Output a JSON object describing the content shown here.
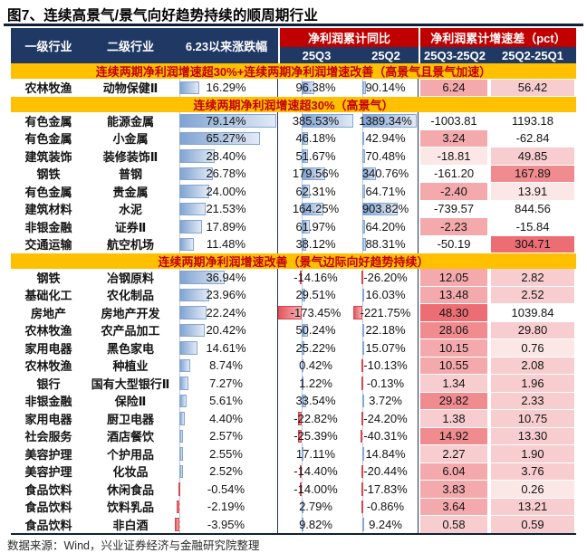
{
  "title": "图7、连续高景气/景气向好趋势持续的顺周期行业",
  "footer": "数据来源：Wind，兴业证券经济与金融研究院整理",
  "colors": {
    "vars": {
      "navy": "#1F3864",
      "red": "#C00000",
      "yellow": "#FFC000",
      "banner-text": "#C00000",
      "divider": "#22365E",
      "bar-blue-1": "#7FA3D1",
      "bar-blue-2": "#E3EAF6",
      "bar-blue-border": "#84A6D2",
      "bar-red-1": "#E4565C",
      "bar-red-2": "#F3B2B4",
      "bar-red-border": "#D4474E",
      "heat1": "#FCE7E7",
      "heat2": "#F8CDCF",
      "heat3": "#F4A9AC",
      "heat4": "#F08C90",
      "heat5": "#EC6E74"
    }
  },
  "chart_data": {
    "type": "table",
    "title": "连续高景气/景气向好趋势持续的顺周期行业",
    "header": {
      "industry_l1": "一级行业",
      "industry_l2": "二级行业",
      "price_change": "6.23以来涨跌幅",
      "profit_group": "净利润累计同比",
      "diff_group": "净利润累计增速差（pct）",
      "q3": "25Q3",
      "q2": "25Q2",
      "d1": "25Q3-25Q2",
      "d2": "25Q2-25Q1"
    },
    "sections": [
      {
        "label": "连续两期净利润增速超30%+连续两期净利润增速改善（高景气且景气加速）",
        "rows": [
          {
            "l1": "农林牧渔",
            "l2": "动物保健Ⅱ",
            "chg": "16.29%",
            "q3": "96.38%",
            "q2": "90.14%",
            "d1": "6.24",
            "d2": "56.42",
            "h1": 3,
            "h2": 2
          }
        ]
      },
      {
        "label": "连续两期净利润增速超30%（高景气）",
        "rows": [
          {
            "l1": "有色金属",
            "l2": "能源金属",
            "chg": "79.14%",
            "q3": "385.53%",
            "q2": "1389.34%",
            "d1": "-1003.81",
            "d2": "1193.18",
            "h1": 0,
            "h2": 0
          },
          {
            "l1": "有色金属",
            "l2": "小金属",
            "chg": "65.27%",
            "q3": "46.18%",
            "q2": "42.94%",
            "d1": "3.24",
            "d2": "-62.84",
            "h1": 3,
            "h2": 0
          },
          {
            "l1": "建筑装饰",
            "l2": "装修装饰Ⅱ",
            "chg": "28.40%",
            "q3": "51.67%",
            "q2": "70.48%",
            "d1": "-18.81",
            "d2": "49.85",
            "h1": 1,
            "h2": 2
          },
          {
            "l1": "钢铁",
            "l2": "普钢",
            "chg": "26.78%",
            "q3": "179.56%",
            "q2": "340.76%",
            "d1": "-161.20",
            "d2": "167.89",
            "h1": 0,
            "h2": 4
          },
          {
            "l1": "有色金属",
            "l2": "贵金属",
            "chg": "24.00%",
            "q3": "62.31%",
            "q2": "64.71%",
            "d1": "-2.40",
            "d2": "13.91",
            "h1": 3,
            "h2": 1
          },
          {
            "l1": "建筑材料",
            "l2": "水泥",
            "chg": "21.53%",
            "q3": "164.25%",
            "q2": "903.82%",
            "d1": "-739.57",
            "d2": "844.56",
            "h1": 0,
            "h2": 0
          },
          {
            "l1": "非银金融",
            "l2": "证券Ⅱ",
            "chg": "17.89%",
            "q3": "61.97%",
            "q2": "64.20%",
            "d1": "-2.23",
            "d2": "-15.84",
            "h1": 3,
            "h2": 0
          },
          {
            "l1": "交通运输",
            "l2": "航空机场",
            "chg": "11.48%",
            "q3": "38.12%",
            "q2": "88.31%",
            "d1": "-50.19",
            "d2": "304.71",
            "h1": 0,
            "h2": 5
          }
        ]
      },
      {
        "label": "连续两期净利润增速改善（景气边际向好趋势持续）",
        "rows": [
          {
            "l1": "钢铁",
            "l2": "冶钢原料",
            "chg": "36.94%",
            "q3": "-14.16%",
            "q2": "-26.20%",
            "d1": "12.05",
            "d2": "2.82",
            "h1": 3,
            "h2": 2
          },
          {
            "l1": "基础化工",
            "l2": "农化制品",
            "chg": "23.96%",
            "q3": "29.51%",
            "q2": "16.03%",
            "d1": "13.48",
            "d2": "2.52",
            "h1": 3,
            "h2": 2
          },
          {
            "l1": "房地产",
            "l2": "房地产开发",
            "chg": "22.24%",
            "q3": "-173.45%",
            "q2": "-221.75%",
            "d1": "48.30",
            "d2": "1039.84",
            "h1": 5,
            "h2": 0
          },
          {
            "l1": "农林牧渔",
            "l2": "农产品加工",
            "chg": "20.42%",
            "q3": "50.24%",
            "q2": "22.18%",
            "d1": "28.06",
            "d2": "29.80",
            "h1": 4,
            "h2": 2
          },
          {
            "l1": "家用电器",
            "l2": "黑色家电",
            "chg": "14.61%",
            "q3": "25.22%",
            "q2": "15.07%",
            "d1": "10.15",
            "d2": "0.76",
            "h1": 3,
            "h2": 1
          },
          {
            "l1": "农林牧渔",
            "l2": "种植业",
            "chg": "8.74%",
            "q3": "0.42%",
            "q2": "-10.13%",
            "d1": "10.55",
            "d2": "2.08",
            "h1": 3,
            "h2": 2
          },
          {
            "l1": "银行",
            "l2": "国有大型银行Ⅱ",
            "chg": "7.27%",
            "q3": "1.22%",
            "q2": "-0.13%",
            "d1": "1.34",
            "d2": "1.96",
            "h1": 2,
            "h2": 2
          },
          {
            "l1": "非银金融",
            "l2": "保险Ⅱ",
            "chg": "5.61%",
            "q3": "33.54%",
            "q2": "3.72%",
            "d1": "29.82",
            "d2": "2.33",
            "h1": 4,
            "h2": 2
          },
          {
            "l1": "家用电器",
            "l2": "厨卫电器",
            "chg": "4.40%",
            "q3": "-22.82%",
            "q2": "-24.20%",
            "d1": "1.38",
            "d2": "10.75",
            "h1": 2,
            "h2": 2
          },
          {
            "l1": "社会服务",
            "l2": "酒店餐饮",
            "chg": "2.57%",
            "q3": "-25.39%",
            "q2": "-40.31%",
            "d1": "14.92",
            "d2": "13.30",
            "h1": 4,
            "h2": 2
          },
          {
            "l1": "美容护理",
            "l2": "个护用品",
            "chg": "2.55%",
            "q3": "17.11%",
            "q2": "14.84%",
            "d1": "2.27",
            "d2": "1.90",
            "h1": 2,
            "h2": 2
          },
          {
            "l1": "美容护理",
            "l2": "化妆品",
            "chg": "2.52%",
            "q3": "-14.40%",
            "q2": "-20.44%",
            "d1": "6.04",
            "d2": "3.76",
            "h1": 3,
            "h2": 2
          },
          {
            "l1": "食品饮料",
            "l2": "休闲食品",
            "chg": "-0.54%",
            "q3": "-14.00%",
            "q2": "-17.83%",
            "d1": "3.83",
            "d2": "0.26",
            "h1": 3,
            "h2": 1
          },
          {
            "l1": "食品饮料",
            "l2": "饮料乳品",
            "chg": "-2.19%",
            "q3": "2.79%",
            "q2": "-0.86%",
            "d1": "3.64",
            "d2": "13.21",
            "h1": 3,
            "h2": 2
          },
          {
            "l1": "食品饮料",
            "l2": "非白酒",
            "chg": "-3.95%",
            "q3": "9.82%",
            "q2": "9.24%",
            "d1": "0.58",
            "d2": "0.59",
            "h1": 2,
            "h2": 2
          }
        ]
      }
    ]
  }
}
